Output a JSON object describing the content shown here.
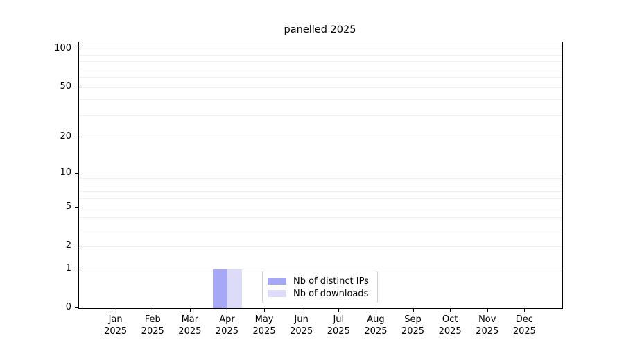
{
  "title": "panelled 2025",
  "chart_data": {
    "type": "bar",
    "title": "panelled 2025",
    "x": {
      "months": [
        "Jan",
        "Feb",
        "Mar",
        "Apr",
        "May",
        "Jun",
        "Jul",
        "Aug",
        "Sep",
        "Oct",
        "Nov",
        "Dec"
      ],
      "year": "2025"
    },
    "series": [
      {
        "name": "Nb of distinct IPs",
        "color": "#a6a8f5",
        "values": [
          0,
          0,
          0,
          1,
          0,
          0,
          0,
          0,
          0,
          0,
          0,
          0
        ]
      },
      {
        "name": "Nb of downloads",
        "color": "#dcdcf8",
        "values": [
          0,
          0,
          0,
          1,
          0,
          0,
          0,
          0,
          0,
          0,
          0,
          0
        ]
      }
    ],
    "yscale": "log1p",
    "ylim": [
      0,
      113.3
    ],
    "yticks": [
      0,
      1,
      2,
      5,
      10,
      20,
      50,
      100
    ],
    "major_gridlines": [
      1,
      10,
      100
    ],
    "minor_gridlines": [
      2,
      3,
      4,
      5,
      6,
      7,
      8,
      9,
      20,
      30,
      40,
      50,
      60,
      70,
      80,
      90
    ],
    "grid": "horizontal",
    "legend_position": "lower center",
    "colors": {
      "major_grid": "#d2d2d2",
      "minor_grid": "#f0f0f0",
      "axis": "#000000"
    }
  }
}
